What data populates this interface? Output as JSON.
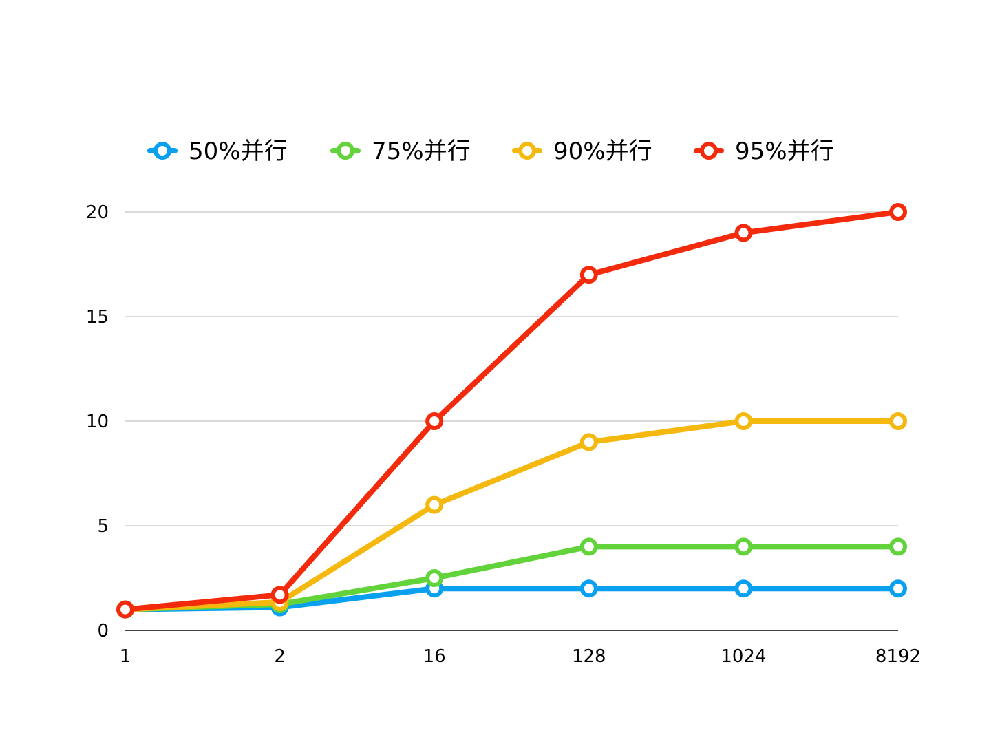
{
  "chart_data": {
    "type": "line",
    "categories": [
      "1",
      "2",
      "16",
      "128",
      "1024",
      "8192"
    ],
    "yticks": [
      "0",
      "5",
      "10",
      "15",
      "20"
    ],
    "ylim": [
      0,
      20
    ],
    "grid": true,
    "legend_position": "top",
    "series": [
      {
        "name": "50%并行",
        "color": "#0aa0f0",
        "values": [
          1,
          1.1,
          2,
          2,
          2,
          2
        ]
      },
      {
        "name": "75%并行",
        "color": "#62d33a",
        "values": [
          1,
          1.25,
          2.5,
          4,
          4,
          4
        ]
      },
      {
        "name": "90%并行",
        "color": "#f5b80e",
        "values": [
          1,
          1.35,
          6,
          9,
          10,
          10
        ]
      },
      {
        "name": "95%并行",
        "color": "#f42a0c",
        "values": [
          1,
          1.7,
          10,
          17,
          19,
          20
        ]
      }
    ]
  }
}
